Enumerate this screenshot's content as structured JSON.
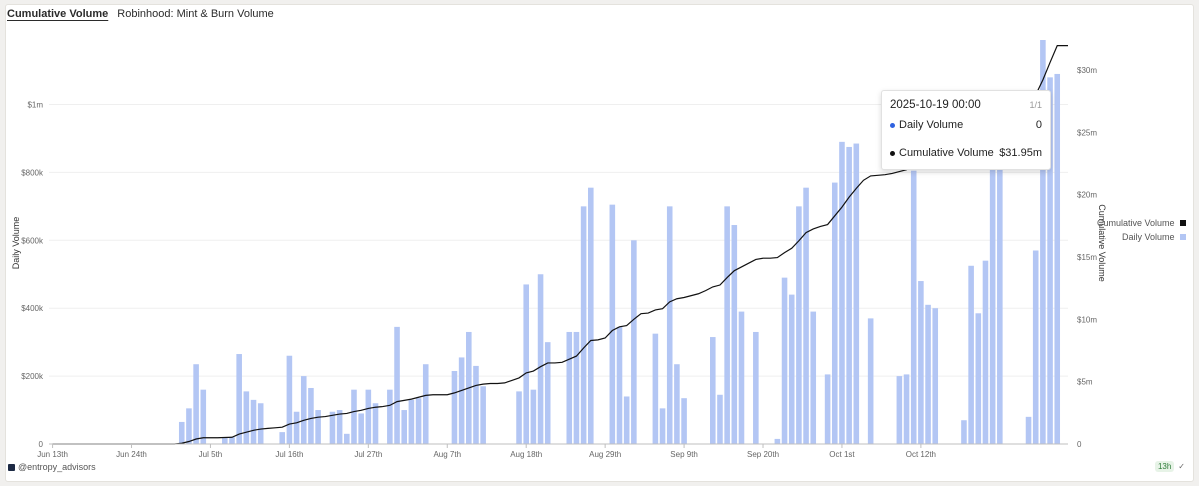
{
  "tabs": {
    "active": "Cumulative Volume",
    "other": "Robinhood: Mint & Burn Volume"
  },
  "tooltip": {
    "datetime": "2025-10-19 00:00",
    "page": "1/1",
    "row1_label": "Daily Volume",
    "row1_value": "0",
    "row2_label": "Cumulative Volume",
    "row2_value": "$31.95m"
  },
  "legend": {
    "cumulative": "Cumulative Volume",
    "daily": "Daily Volume"
  },
  "footer": {
    "handle": "@entropy_advisors",
    "interval": "13h"
  },
  "colors": {
    "bar": "#b3c6f4",
    "line": "#111111",
    "daily_dot": "#2f62e0"
  },
  "chart_data": {
    "type": "bar",
    "title": "",
    "xlabel": "",
    "ylabel": "Daily Volume",
    "y2label": "Cumulative Volume",
    "x_ticks": [
      "Jun 13th",
      "Jun 24th",
      "Jul 5th",
      "Jul 16th",
      "Jul 27th",
      "Aug 7th",
      "Aug 18th",
      "Aug 29th",
      "Sep 9th",
      "Sep 20th",
      "Oct 1st",
      "Oct 12th"
    ],
    "y_ticks": [
      "0",
      "$200k",
      "$400k",
      "$600k",
      "$800k",
      "$1m"
    ],
    "y2_ticks": [
      "0",
      "$5m",
      "$10m",
      "$15m",
      "$20m",
      "$25m",
      "$30m"
    ],
    "ylim": [
      0,
      1190000
    ],
    "y2lim": [
      0,
      32400000
    ],
    "x_start": "2025-06-13",
    "series": [
      {
        "name": "Daily Volume",
        "kind": "bar",
        "values": [
          0,
          0,
          0,
          0,
          0,
          0,
          0,
          0,
          0,
          0,
          0,
          0,
          0,
          0,
          0,
          0,
          0,
          0,
          65000,
          105000,
          235000,
          160000,
          0,
          0,
          20000,
          20000,
          265000,
          155000,
          130000,
          120000,
          0,
          0,
          35000,
          260000,
          95000,
          200000,
          165000,
          100000,
          0,
          95000,
          100000,
          30000,
          160000,
          90000,
          160000,
          120000,
          0,
          160000,
          345000,
          100000,
          130000,
          135000,
          235000,
          0,
          0,
          0,
          215000,
          255000,
          330000,
          230000,
          170000,
          0,
          0,
          0,
          0,
          155000,
          470000,
          160000,
          500000,
          300000,
          0,
          0,
          330000,
          330000,
          700000,
          755000,
          0,
          0,
          705000,
          345000,
          140000,
          600000,
          0,
          0,
          325000,
          105000,
          700000,
          235000,
          135000,
          0,
          0,
          0,
          315000,
          145000,
          700000,
          645000,
          390000,
          0,
          330000,
          0,
          0,
          15000,
          490000,
          440000,
          700000,
          755000,
          390000,
          0,
          205000,
          770000,
          890000,
          875000,
          885000,
          0,
          370000,
          0,
          0,
          0,
          200000,
          205000,
          805000,
          480000,
          410000,
          400000,
          0,
          0,
          0,
          70000,
          525000,
          385000,
          540000,
          905000,
          920000,
          0,
          0,
          0,
          80000,
          570000,
          1190000,
          1080000,
          1090000,
          0
        ]
      },
      {
        "name": "Cumulative Volume",
        "kind": "line",
        "values": [
          0,
          0,
          0,
          0,
          0,
          0,
          0,
          0,
          0,
          0,
          0,
          0,
          0,
          0,
          0,
          0,
          0,
          0,
          60000,
          200000,
          400000,
          500000,
          500000,
          500000,
          520000,
          540000,
          800000,
          950000,
          1100000,
          1200000,
          1250000,
          1300000,
          1350000,
          1600000,
          1700000,
          1900000,
          2050000,
          2150000,
          2200000,
          2300000,
          2400000,
          2450000,
          2600000,
          2700000,
          2850000,
          2950000,
          3000000,
          3100000,
          3400000,
          3500000,
          3600000,
          3750000,
          3900000,
          3950000,
          3950000,
          3950000,
          4100000,
          4300000,
          4500000,
          4700000,
          4800000,
          4850000,
          4850000,
          4900000,
          5100000,
          5300000,
          5700000,
          5850000,
          6200000,
          6500000,
          6500000,
          6550000,
          6800000,
          7050000,
          7700000,
          8300000,
          8350000,
          8500000,
          9100000,
          9400000,
          9500000,
          10000000,
          10450000,
          10500000,
          10750000,
          10850000,
          11400000,
          11650000,
          11750000,
          11900000,
          12050000,
          12300000,
          12600000,
          12750000,
          13350000,
          13900000,
          14200000,
          14500000,
          14800000,
          14900000,
          14900000,
          14950000,
          15350000,
          15700000,
          16300000,
          16950000,
          17250000,
          17450000,
          17600000,
          18300000,
          19000000,
          19800000,
          20500000,
          21150000,
          21500000,
          21550000,
          21600000,
          21700000,
          21850000,
          22000000,
          22700000,
          23100000,
          23400000,
          23700000,
          23800000,
          23950000,
          24000000,
          24050000,
          24500000,
          24800000,
          25250000,
          26000000,
          27000000,
          27200000,
          27300000,
          27400000,
          27500000,
          28000000,
          29200000,
          30600000,
          31950000,
          31950000
        ]
      }
    ],
    "grid": true
  }
}
